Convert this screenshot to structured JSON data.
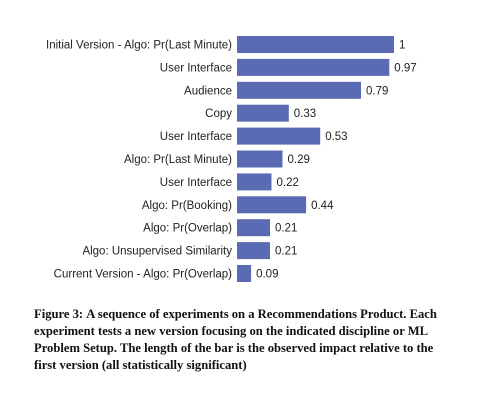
{
  "chart_data": {
    "type": "bar",
    "orientation": "horizontal",
    "categories": [
      "Initial Version - Algo: Pr(Last Minute)",
      "User Interface",
      "Audience",
      "Copy",
      "User Interface",
      "Algo: Pr(Last Minute)",
      "User Interface",
      "Algo: Pr(Booking)",
      "Algo: Pr(Overlap)",
      "Algo: Unsupervised Similarity",
      "Current Version - Algo: Pr(Overlap)"
    ],
    "values": [
      1,
      0.97,
      0.79,
      0.33,
      0.53,
      0.29,
      0.22,
      0.44,
      0.21,
      0.21,
      0.09
    ],
    "value_labels": [
      "1",
      "0.97",
      "0.79",
      "0.33",
      "0.53",
      "0.29",
      "0.22",
      "0.44",
      "0.21",
      "0.21",
      "0.09"
    ],
    "xlim": [
      0,
      1
    ],
    "grid": false,
    "legend": "none",
    "bar_color": "#5b6bb3"
  },
  "caption": {
    "label": "Figure 3:",
    "text": "A sequence of experiments on a Recommendations Product. Each experiment tests a new version focusing on the indicated discipline or ML Problem Setup. The length of the bar is the observed impact relative to the first version (all statistically significant)"
  }
}
